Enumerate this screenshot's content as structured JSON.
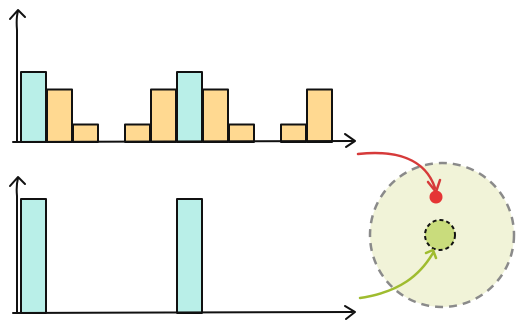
{
  "colors": {
    "cyan_bar": "#b9efe8",
    "orange_bar": "#ffd991",
    "outline": "#111111",
    "halo_fill": "#f1f3d8",
    "halo_stroke": "#8a8a8a",
    "red_point": "#e53535",
    "red_arrow": "#d63a3a",
    "green_point": "#c9dc7c",
    "green_arrow": "#9fbc2f"
  },
  "chart_data": [
    {
      "type": "bar",
      "panel": "top",
      "grid": false,
      "xlabel": "",
      "ylabel": "",
      "ylim": [
        0,
        5
      ],
      "bins": 12,
      "series": [
        {
          "color": "cyan",
          "values": [
            4,
            0,
            0,
            0,
            0,
            0,
            4,
            0,
            0,
            0,
            0,
            0
          ]
        },
        {
          "color": "orange",
          "values": [
            0,
            3,
            1,
            0,
            1,
            3,
            0,
            3,
            1,
            0,
            1,
            3
          ]
        }
      ]
    },
    {
      "type": "bar",
      "panel": "bottom",
      "grid": false,
      "xlabel": "",
      "ylabel": "",
      "ylim": [
        0,
        5
      ],
      "bins": 12,
      "series": [
        {
          "color": "cyan",
          "values": [
            4,
            0,
            0,
            0,
            0,
            0,
            4,
            0,
            0,
            0,
            0,
            0
          ]
        }
      ]
    }
  ]
}
